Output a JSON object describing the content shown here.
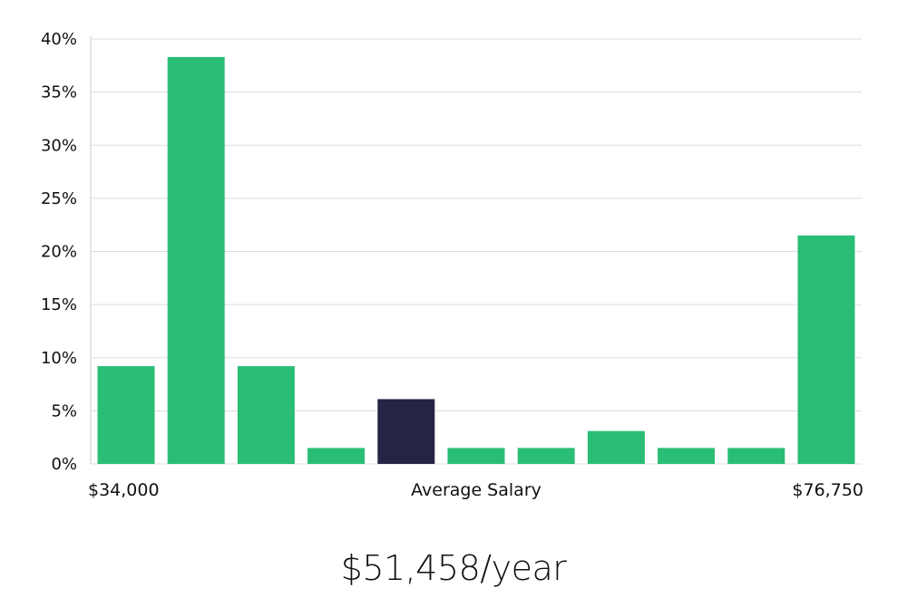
{
  "chart_data": {
    "type": "bar",
    "title": "",
    "xlabel": "Average Salary",
    "ylabel": "",
    "ylim": [
      0,
      40
    ],
    "yticks": [
      0,
      5,
      10,
      15,
      20,
      25,
      30,
      35,
      40
    ],
    "ytick_labels": [
      "0%",
      "5%",
      "10%",
      "15%",
      "20%",
      "25%",
      "30%",
      "35%",
      "40%"
    ],
    "x_min_label": "$34,000",
    "x_max_label": "$76,750",
    "values": [
      9.2,
      38.3,
      9.2,
      1.5,
      6.1,
      1.5,
      1.5,
      3.1,
      1.5,
      1.5,
      21.5
    ],
    "highlight_index": 4,
    "grid": true,
    "colors": {
      "bar": "#2abd75",
      "highlight": "#262444",
      "grid": "#dddddd",
      "axis": "#cccccc",
      "text": "#111111"
    }
  },
  "summary": {
    "average_salary": "$51,458/year"
  }
}
